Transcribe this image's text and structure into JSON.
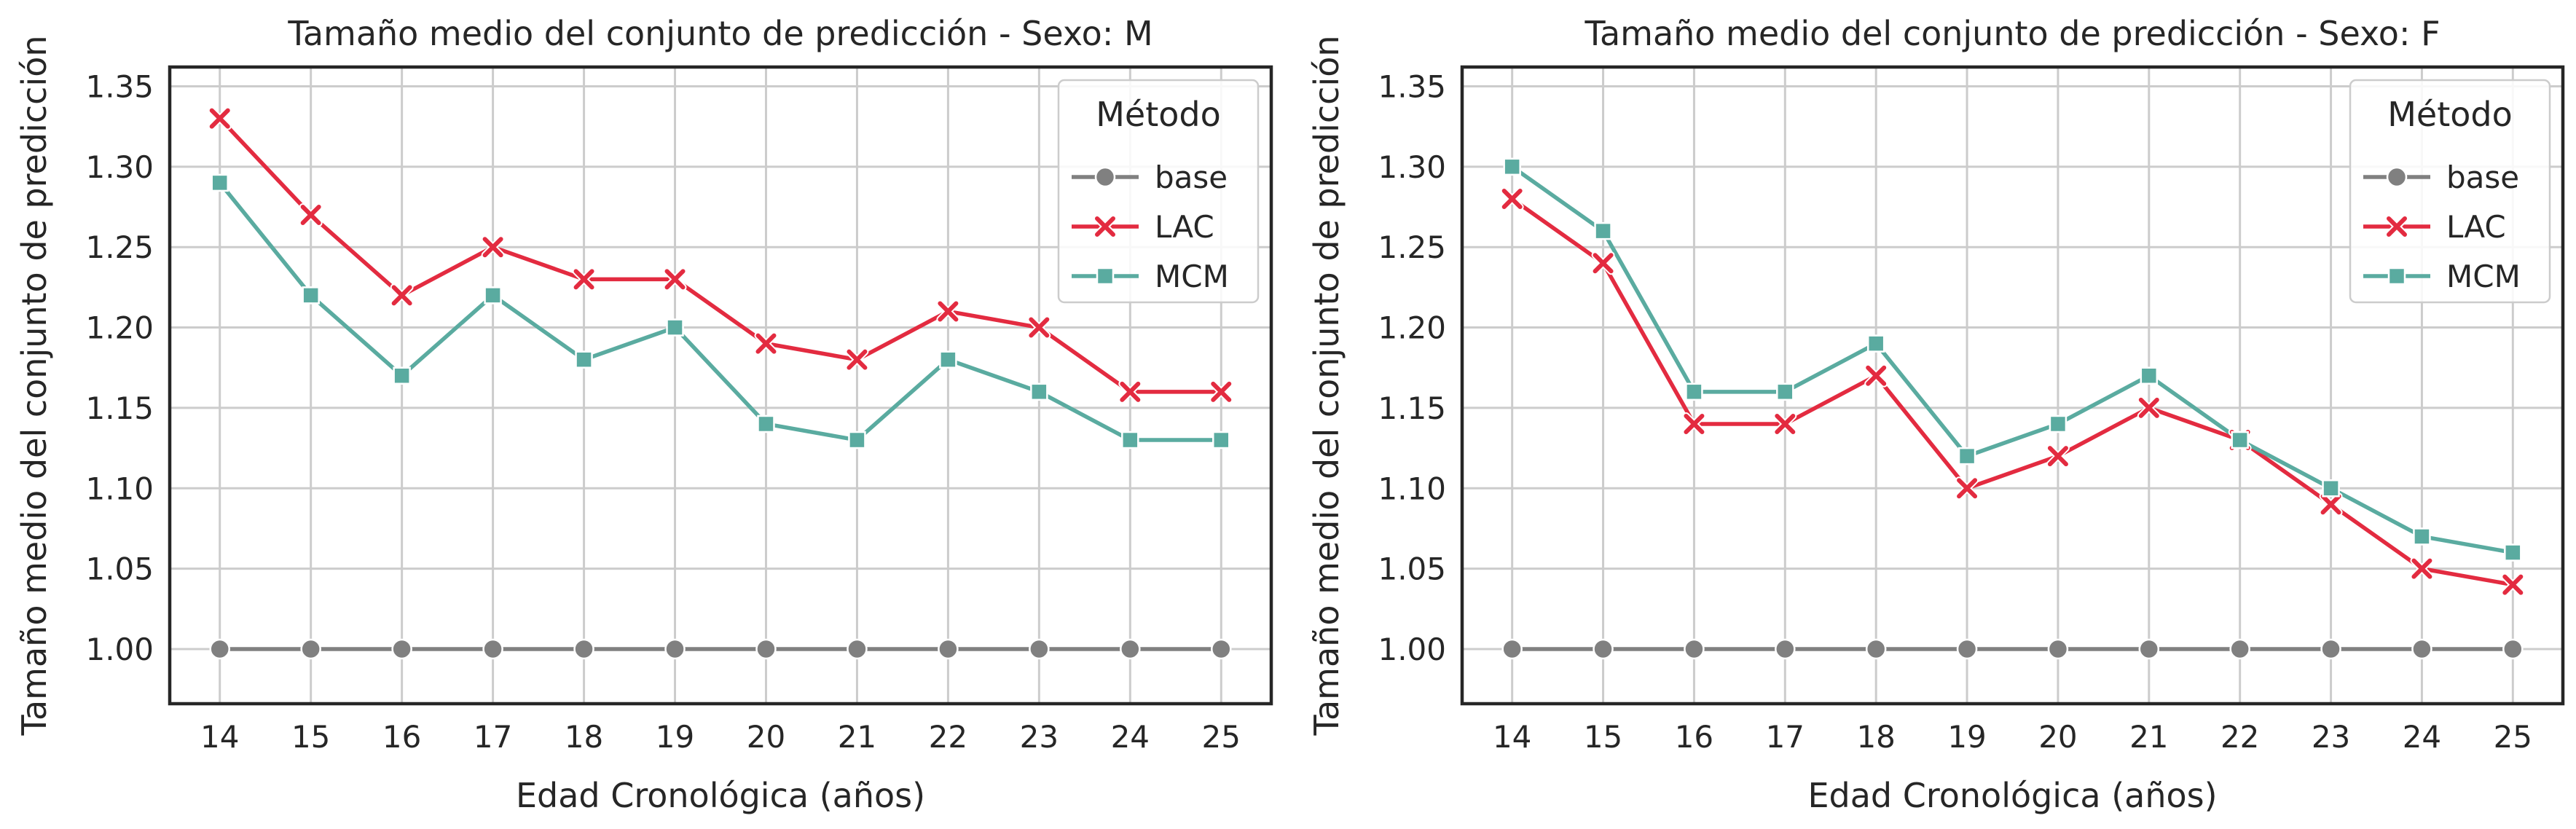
{
  "chart_data": [
    {
      "type": "line",
      "title": "Tamaño medio del conjunto de predicción - Sexo: M",
      "xlabel": "Edad Cronológica (años)",
      "ylabel": "Tamaño medio del conjunto de predicción",
      "x": [
        14,
        15,
        16,
        17,
        18,
        19,
        20,
        21,
        22,
        23,
        24,
        25
      ],
      "x_tick_labels": [
        "14",
        "15",
        "16",
        "17",
        "18",
        "19",
        "20",
        "21",
        "22",
        "23",
        "24",
        "25"
      ],
      "y_ticks": [
        1.0,
        1.05,
        1.1,
        1.15,
        1.2,
        1.25,
        1.3,
        1.35
      ],
      "y_tick_labels": [
        "1.00",
        "1.05",
        "1.10",
        "1.15",
        "1.20",
        "1.25",
        "1.30",
        "1.35"
      ],
      "ylim": [
        0.966,
        1.362
      ],
      "xlim": [
        13.45,
        25.55
      ],
      "grid": true,
      "legend": {
        "title": "Método",
        "position": "top-right"
      },
      "series": [
        {
          "name": "base",
          "color": "#808080",
          "marker": "circle",
          "values": [
            1.0,
            1.0,
            1.0,
            1.0,
            1.0,
            1.0,
            1.0,
            1.0,
            1.0,
            1.0,
            1.0,
            1.0
          ]
        },
        {
          "name": "LAC",
          "color": "#e32b40",
          "marker": "x",
          "values": [
            1.33,
            1.27,
            1.22,
            1.25,
            1.23,
            1.23,
            1.19,
            1.18,
            1.21,
            1.2,
            1.16,
            1.16
          ]
        },
        {
          "name": "MCM",
          "color": "#5aaba0",
          "marker": "square",
          "values": [
            1.29,
            1.22,
            1.17,
            1.22,
            1.18,
            1.2,
            1.14,
            1.13,
            1.18,
            1.16,
            1.13,
            1.13
          ]
        }
      ]
    },
    {
      "type": "line",
      "title": "Tamaño medio del conjunto de predicción - Sexo: F",
      "xlabel": "Edad Cronológica (años)",
      "ylabel": "Tamaño medio del conjunto de predicción",
      "x": [
        14,
        15,
        16,
        17,
        18,
        19,
        20,
        21,
        22,
        23,
        24,
        25
      ],
      "x_tick_labels": [
        "14",
        "15",
        "16",
        "17",
        "18",
        "19",
        "20",
        "21",
        "22",
        "23",
        "24",
        "25"
      ],
      "y_ticks": [
        1.0,
        1.05,
        1.1,
        1.15,
        1.2,
        1.25,
        1.3,
        1.35
      ],
      "y_tick_labels": [
        "1.00",
        "1.05",
        "1.10",
        "1.15",
        "1.20",
        "1.25",
        "1.30",
        "1.35"
      ],
      "ylim": [
        0.966,
        1.362
      ],
      "xlim": [
        13.45,
        25.55
      ],
      "grid": true,
      "legend": {
        "title": "Método",
        "position": "top-right"
      },
      "series": [
        {
          "name": "base",
          "color": "#808080",
          "marker": "circle",
          "values": [
            1.0,
            1.0,
            1.0,
            1.0,
            1.0,
            1.0,
            1.0,
            1.0,
            1.0,
            1.0,
            1.0,
            1.0
          ]
        },
        {
          "name": "LAC",
          "color": "#e32b40",
          "marker": "x",
          "values": [
            1.28,
            1.24,
            1.14,
            1.14,
            1.17,
            1.1,
            1.12,
            1.15,
            1.13,
            1.09,
            1.05,
            1.04
          ]
        },
        {
          "name": "MCM",
          "color": "#5aaba0",
          "marker": "square",
          "values": [
            1.3,
            1.26,
            1.16,
            1.16,
            1.19,
            1.12,
            1.14,
            1.17,
            1.13,
            1.1,
            1.07,
            1.06
          ]
        }
      ]
    }
  ]
}
